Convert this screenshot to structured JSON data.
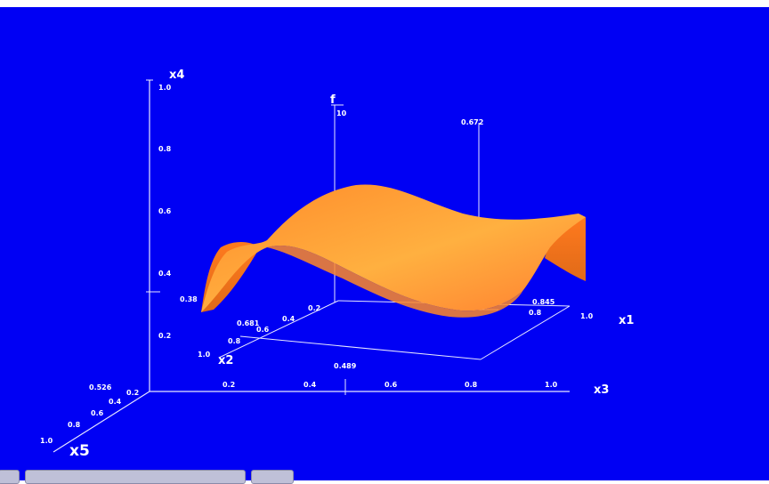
{
  "chart_data": {
    "type": "surface",
    "title": "",
    "axes": {
      "x1": {
        "label": "x1",
        "ticks": [
          "0.845",
          "0.8",
          "1.0"
        ]
      },
      "x2": {
        "label": "x2",
        "ticks": [
          "0.2",
          "0.4",
          "0.6",
          "0.8",
          "0.681",
          "1.0"
        ]
      },
      "x3": {
        "label": "x3",
        "ticks": [
          "0.2",
          "0.4",
          "0.6",
          "0.8",
          "1.0",
          "0.489"
        ]
      },
      "x4": {
        "label": "x4",
        "ticks": [
          "0.2",
          "0.4",
          "0.6",
          "0.8",
          "1.0",
          "0.38"
        ]
      },
      "x5": {
        "label": "x5",
        "ticks": [
          "0.2",
          "0.4",
          "0.6",
          "0.8",
          "1.0",
          "0.526"
        ]
      },
      "f": {
        "label": "f",
        "ticks": [
          "10"
        ],
        "marker": "0.672"
      }
    },
    "surface_color": "#ff9b2e",
    "background": "#0000f4"
  },
  "controls": {
    "buttons": [
      "",
      "",
      ""
    ]
  }
}
